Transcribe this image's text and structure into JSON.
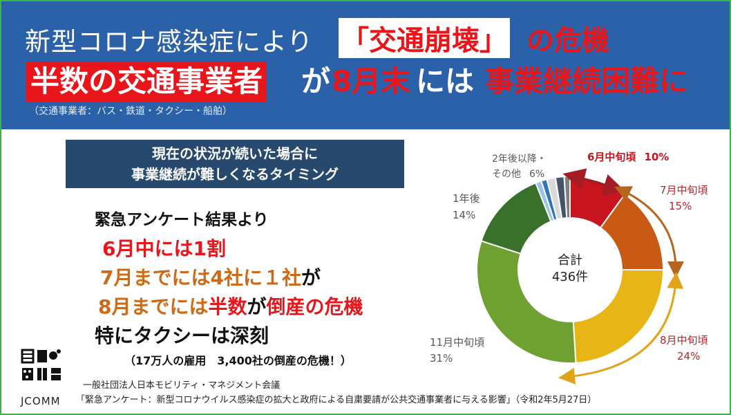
{
  "banner": {
    "title_line1": "新型コロナ感染症により",
    "title_line1_highlight": "「交通崩壊」",
    "title_line1_end": "の危機",
    "title_line2_a": "半数の交通事業者",
    "title_line2_b": "が",
    "title_line2_c": "8月末",
    "title_line2_d": "には",
    "title_line2_e": "事業継続困難に",
    "note": "（交通事業者：バス・鉄道・タクシー・船舶）"
  },
  "headline_box": {
    "line1": "現在の状況が続いた場合に",
    "line2": "事業継続が難しくなるタイミング"
  },
  "body": {
    "survey": "緊急アンケート結果より",
    "line1": "6月中には1割",
    "line2_a": "7月までには4社に１社",
    "line2_b": "が",
    "line3_a": "8月までには",
    "line3_b": "半数",
    "line3_c": "が",
    "line3_d": "倒産の危機",
    "line4": "特にタクシーは深刻",
    "line5": "（17万人の雇用　3,400社の倒産の危機！）"
  },
  "footer": {
    "logo_text": "JCOMM",
    "org": "一般社団法人日本モビリティ・マネジメント会議",
    "citation": "「緊急アンケート：新型コロナウイルス感染症の拡大と政府による自粛要請が公共交通事業者に与える影響」（令和2年5月27日）"
  },
  "colors": {
    "banner": "#2b61a8",
    "accent_red": "#e8161b",
    "orange_text": "#cc6a17",
    "box": "#27496e",
    "frame": "#3bb54a"
  },
  "chart_data": {
    "type": "pie",
    "donut": true,
    "center_label": [
      "合計",
      "436件"
    ],
    "slices": [
      {
        "label": "6月中旬頃",
        "value": 10,
        "value_label": "10%",
        "color": "#c8141e",
        "label_color": "#c8141e"
      },
      {
        "label": "7月中旬頃",
        "value": 15,
        "value_label": "15%",
        "color": "#c95a16",
        "label_color": "#b3282d"
      },
      {
        "label": "8月中旬頃",
        "value": 24,
        "value_label": "24%",
        "color": "#e8b516",
        "label_color": "#b3282d"
      },
      {
        "label": "11月中旬頃",
        "value": 31,
        "value_label": "31%",
        "color": "#6fa032",
        "label_color": "#595959"
      },
      {
        "label": "1年後",
        "value": 14,
        "value_label": "14%",
        "color": "#39702a",
        "label_color": "#595959"
      },
      {
        "label": "",
        "value": 1.0,
        "value_label": "",
        "color": "#9dc3e6",
        "label_color": "#595959"
      },
      {
        "label": "",
        "value": 1.0,
        "value_label": "",
        "color": "#2e75b6",
        "label_color": "#595959"
      },
      {
        "label": "",
        "value": 1.5,
        "value_label": "",
        "color": "#d9d9d9",
        "label_color": "#595959"
      },
      {
        "label": "",
        "value": 1.5,
        "value_label": "",
        "color": "#44546a",
        "label_color": "#595959"
      },
      {
        "label": "",
        "value": 1.0,
        "value_label": "",
        "color": "#7f7f7f",
        "label_color": "#595959"
      }
    ],
    "other_label": "2年後以降・",
    "other_label2": "その他",
    "other_value_label": "6%"
  }
}
